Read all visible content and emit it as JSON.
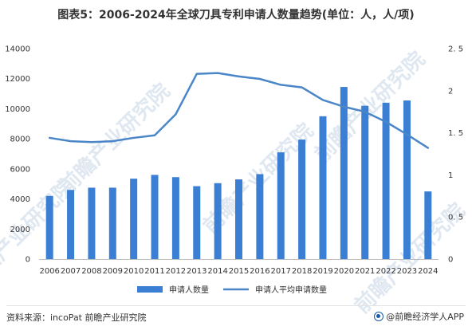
{
  "title": "图表5：2006-2024年全球刀具专利申请人数量趋势(单位：人，人/项)",
  "watermark": "前瞻产业研究院",
  "source": "资料来源：incoPat 前瞻产业研究院",
  "credit": "@前瞻经济学人APP",
  "credit_icon": "qianzhan-logo-icon",
  "colors": {
    "bar": "#3a7fd3",
    "line": "#4a86c8",
    "axis": "#bfbfbf",
    "watermark": "#dfe7f1"
  },
  "chart_data": {
    "type": "bar+line",
    "title": "图表5：2006-2024年全球刀具专利申请人数量趋势(单位：人，人/项)",
    "categories": [
      "2006",
      "2007",
      "2008",
      "2009",
      "2010",
      "2011",
      "2012",
      "2013",
      "2014",
      "2015",
      "2016",
      "2017",
      "2018",
      "2019",
      "2020",
      "2021",
      "2022",
      "2023",
      "2024"
    ],
    "series": [
      {
        "name": "申请人数量",
        "type": "bar",
        "axis": "left",
        "values": [
          4200,
          4600,
          4750,
          4750,
          5350,
          5600,
          5450,
          4850,
          5050,
          5300,
          5650,
          7100,
          7950,
          9500,
          11450,
          10200,
          10400,
          10550,
          4500
        ]
      },
      {
        "name": "申请人平均申请数量",
        "type": "line",
        "axis": "right",
        "values": [
          1.44,
          1.4,
          1.39,
          1.4,
          1.44,
          1.47,
          1.72,
          2.2,
          2.21,
          2.17,
          2.14,
          2.07,
          2.04,
          1.89,
          1.81,
          1.75,
          1.63,
          1.48,
          1.32
        ]
      }
    ],
    "y_left": {
      "min": 0,
      "max": 14000,
      "ticks": [
        "0",
        "2000",
        "4000",
        "6000",
        "8000",
        "10000",
        "12000",
        "14000"
      ]
    },
    "y_right": {
      "min": 0,
      "max": 2.5,
      "ticks": [
        "0",
        "0. 5",
        "1",
        "1. 5",
        "2",
        "2. 5"
      ]
    },
    "grid": false,
    "legend_position": "bottom"
  }
}
